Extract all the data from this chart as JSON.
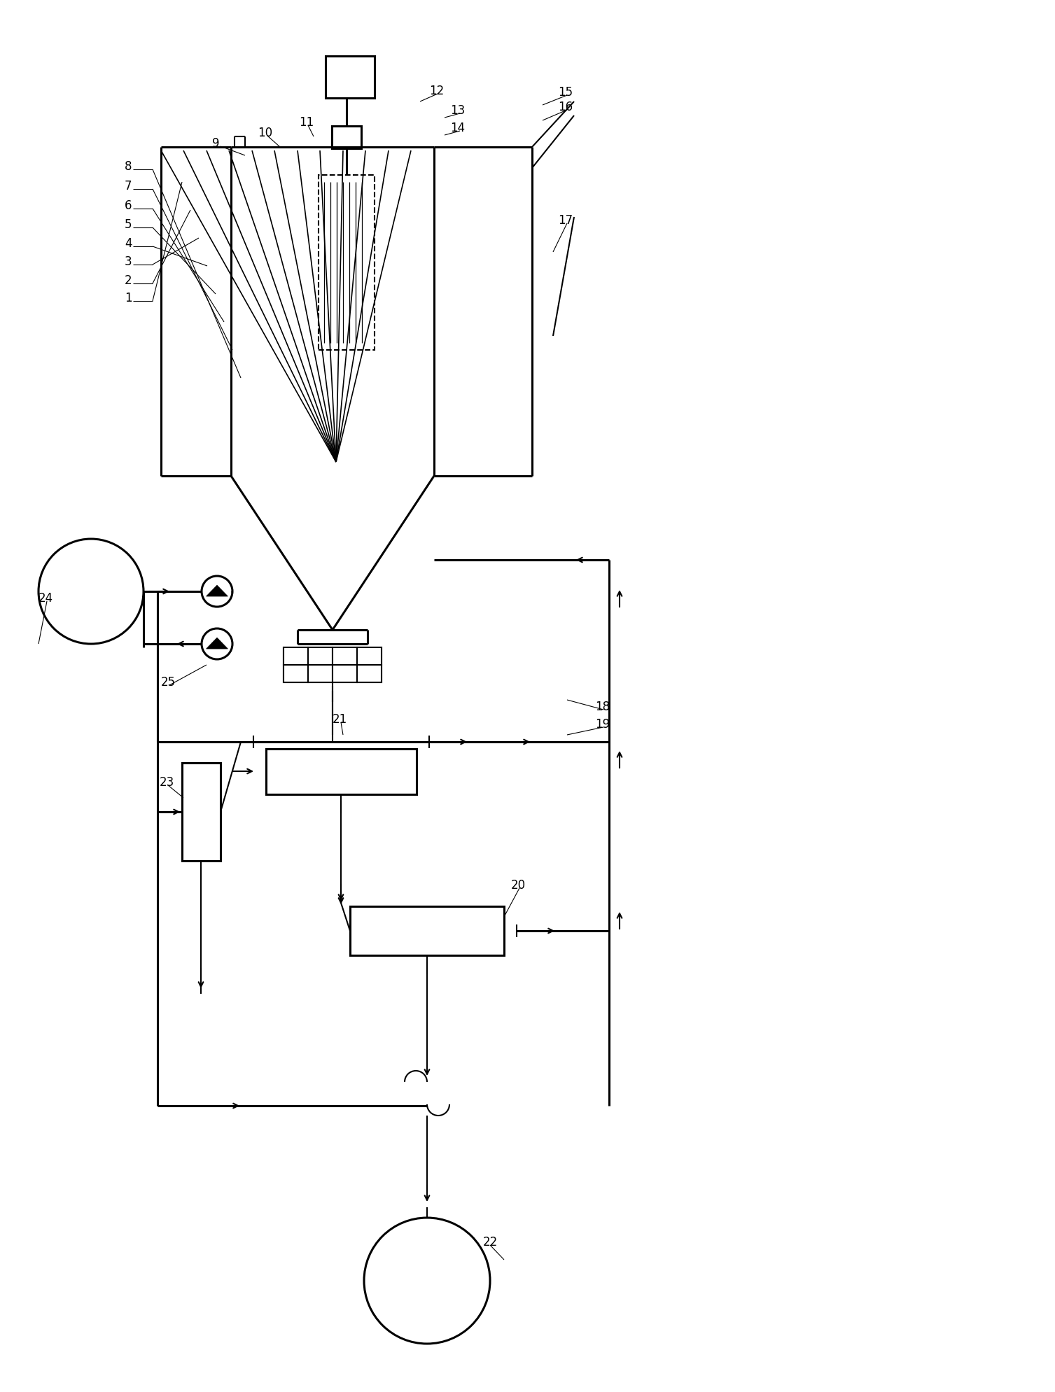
{
  "bg_color": "#ffffff",
  "line_color": "#000000",
  "lw": 1.5,
  "lw2": 2.2,
  "figsize": [
    15.07,
    19.89
  ],
  "dpi": 100
}
